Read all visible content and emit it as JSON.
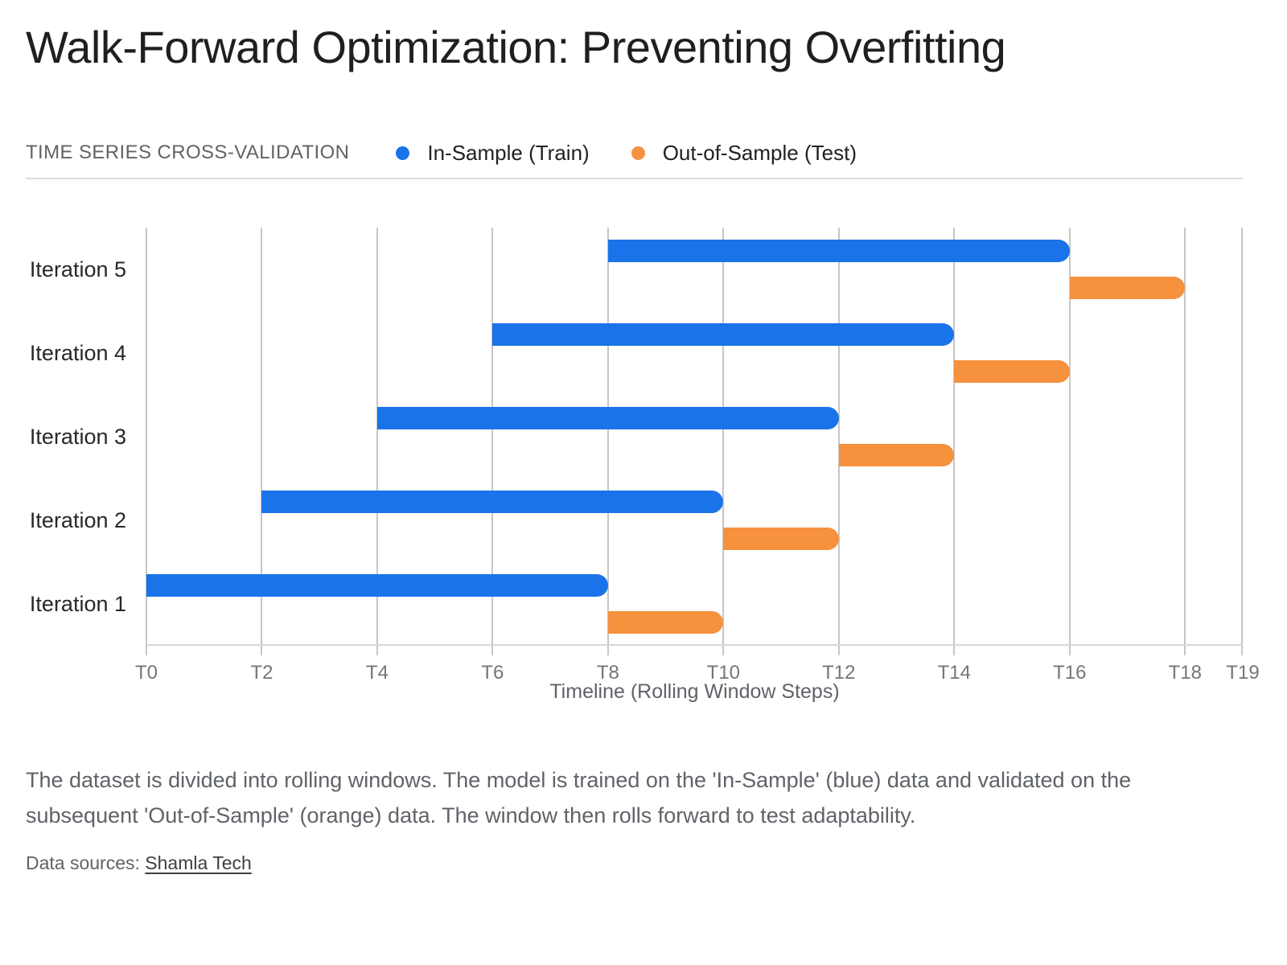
{
  "title": "Walk-Forward Optimization: Preventing Overfitting",
  "legend": {
    "label": "TIME SERIES CROSS-VALIDATION",
    "items": [
      {
        "label": "In-Sample (Train)",
        "color": "#1a73e8"
      },
      {
        "label": "Out-of-Sample (Test)",
        "color": "#f6913e"
      }
    ]
  },
  "chart_data": {
    "type": "bar",
    "variant": "horizontal-gantt",
    "title": "Walk-Forward Optimization: Preventing Overfitting",
    "categories": [
      "Iteration 1",
      "Iteration 2",
      "Iteration 3",
      "Iteration 4",
      "Iteration 5"
    ],
    "row_order_top_to_bottom": [
      "Iteration 5",
      "Iteration 4",
      "Iteration 3",
      "Iteration 2",
      "Iteration 1"
    ],
    "series": [
      {
        "name": "In-Sample (Train)",
        "color": "#1a73e8",
        "ranges": [
          [
            0,
            8
          ],
          [
            2,
            10
          ],
          [
            4,
            12
          ],
          [
            6,
            14
          ],
          [
            8,
            16
          ]
        ]
      },
      {
        "name": "Out-of-Sample (Test)",
        "color": "#f6913e",
        "ranges": [
          [
            8,
            10
          ],
          [
            10,
            12
          ],
          [
            12,
            14
          ],
          [
            14,
            16
          ],
          [
            16,
            18
          ]
        ]
      }
    ],
    "xlabel": "Timeline (Rolling Window Steps)",
    "ylabel": "",
    "xlim": [
      0,
      19
    ],
    "x_ticks": [
      "T0",
      "T2",
      "T4",
      "T6",
      "T8",
      "T10",
      "T12",
      "T14",
      "T16",
      "T18",
      "T19"
    ],
    "x_tick_values": [
      0,
      2,
      4,
      6,
      8,
      10,
      12,
      14,
      16,
      18,
      19
    ],
    "grid": "vertical-only",
    "legend_position": "top"
  },
  "caption": "The dataset is divided into rolling windows. The model is trained on the 'In-Sample' (blue) data and validated on the subsequent 'Out-of-Sample' (orange) data. The window then rolls forward to test adaptability.",
  "sources": {
    "label": "Data sources: ",
    "link": "Shamla Tech"
  },
  "colors": {
    "train": "#1a73e8",
    "test": "#f6913e",
    "gridline": "#c6c6c6",
    "baseline": "#d6d6d6",
    "divider": "#dcdcdc",
    "title_text": "#1f1f1f",
    "muted_text": "#5f6368",
    "tick_text": "#757575"
  }
}
